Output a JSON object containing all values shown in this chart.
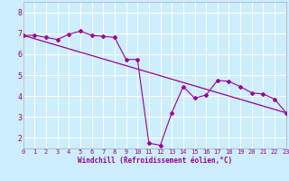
{
  "bg_color": "#cceeff",
  "line_color": "#990099",
  "grid_color": "#ffffff",
  "xlim": [
    0,
    23
  ],
  "ylim": [
    1.5,
    8.5
  ],
  "yticks": [
    2,
    3,
    4,
    5,
    6,
    7,
    8
  ],
  "xticks": [
    0,
    1,
    2,
    3,
    4,
    5,
    6,
    7,
    8,
    9,
    10,
    11,
    12,
    13,
    14,
    15,
    16,
    17,
    18,
    19,
    20,
    21,
    22,
    23
  ],
  "xlabel": "Windchill (Refroidissement éolien,°C)",
  "jagged_x": [
    0,
    1,
    2,
    3,
    4,
    5,
    6,
    7,
    8,
    9,
    10,
    11,
    12,
    13,
    14,
    15,
    16,
    17,
    18,
    19,
    20,
    21,
    22,
    23
  ],
  "jagged_y": [
    6.9,
    6.9,
    6.8,
    6.7,
    6.95,
    7.1,
    6.9,
    6.85,
    6.8,
    5.75,
    5.75,
    1.75,
    1.65,
    3.2,
    4.45,
    3.9,
    4.05,
    4.75,
    4.7,
    4.45,
    4.15,
    4.1,
    3.85,
    3.2
  ],
  "trend_x": [
    0,
    23
  ],
  "trend_y": [
    6.9,
    3.2
  ],
  "tick_color": "#990099",
  "tick_fontsize": 5.0,
  "ytick_fontsize": 6.0,
  "xlabel_fontsize": 5.5
}
